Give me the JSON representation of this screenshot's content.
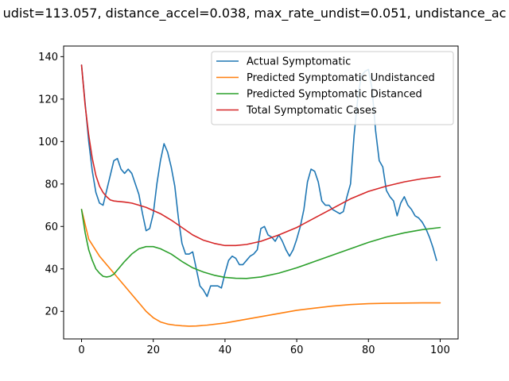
{
  "chart_data": {
    "type": "line",
    "title": "udist=113.057, distance_accel=0.038, max_rate_undist=0.051, undistance_ac",
    "xlabel": "",
    "ylabel": "",
    "xlim": [
      -5,
      105
    ],
    "ylim": [
      7,
      145
    ],
    "xticks": [
      0,
      20,
      40,
      60,
      80,
      100
    ],
    "yticks": [
      20,
      40,
      60,
      80,
      100,
      120,
      140
    ],
    "grid": false,
    "legend_position": "top-right",
    "series": [
      {
        "name": "Actual Symptomatic",
        "color": "#1f77b4",
        "points": [
          [
            0,
            136
          ],
          [
            1,
            118
          ],
          [
            2,
            100
          ],
          [
            3,
            86
          ],
          [
            4,
            76
          ],
          [
            5,
            71
          ],
          [
            6,
            70
          ],
          [
            7,
            77
          ],
          [
            8,
            84
          ],
          [
            9,
            91
          ],
          [
            10,
            92
          ],
          [
            11,
            87
          ],
          [
            12,
            85
          ],
          [
            13,
            87
          ],
          [
            14,
            85
          ],
          [
            15,
            80
          ],
          [
            16,
            75
          ],
          [
            17,
            66
          ],
          [
            18,
            58
          ],
          [
            19,
            59
          ],
          [
            20,
            66
          ],
          [
            21,
            80
          ],
          [
            22,
            91
          ],
          [
            23,
            99
          ],
          [
            24,
            95
          ],
          [
            25,
            88
          ],
          [
            26,
            79
          ],
          [
            27,
            64
          ],
          [
            28,
            52
          ],
          [
            29,
            47
          ],
          [
            30,
            47
          ],
          [
            31,
            48
          ],
          [
            32,
            40
          ],
          [
            33,
            32
          ],
          [
            34,
            30
          ],
          [
            35,
            27
          ],
          [
            36,
            32
          ],
          [
            37,
            32
          ],
          [
            38,
            32
          ],
          [
            39,
            31
          ],
          [
            40,
            38
          ],
          [
            41,
            44
          ],
          [
            42,
            46
          ],
          [
            43,
            45
          ],
          [
            44,
            42
          ],
          [
            45,
            42
          ],
          [
            46,
            44
          ],
          [
            47,
            46
          ],
          [
            48,
            47
          ],
          [
            49,
            49
          ],
          [
            50,
            59
          ],
          [
            51,
            60
          ],
          [
            52,
            56
          ],
          [
            53,
            55
          ],
          [
            54,
            53
          ],
          [
            55,
            56
          ],
          [
            56,
            53
          ],
          [
            57,
            49
          ],
          [
            58,
            46
          ],
          [
            59,
            49
          ],
          [
            60,
            54
          ],
          [
            61,
            60
          ],
          [
            62,
            68
          ],
          [
            63,
            81
          ],
          [
            64,
            87
          ],
          [
            65,
            86
          ],
          [
            66,
            81
          ],
          [
            67,
            72
          ],
          [
            68,
            70
          ],
          [
            69,
            70
          ],
          [
            70,
            68
          ],
          [
            71,
            67
          ],
          [
            72,
            66
          ],
          [
            73,
            67
          ],
          [
            74,
            74
          ],
          [
            75,
            80
          ],
          [
            76,
            103
          ],
          [
            77,
            120
          ],
          [
            78,
            131
          ],
          [
            79,
            133
          ],
          [
            80,
            134
          ],
          [
            81,
            125
          ],
          [
            82,
            105
          ],
          [
            83,
            91
          ],
          [
            84,
            88
          ],
          [
            85,
            77
          ],
          [
            86,
            74
          ],
          [
            87,
            72
          ],
          [
            88,
            65
          ],
          [
            89,
            71
          ],
          [
            90,
            74
          ],
          [
            91,
            70
          ],
          [
            92,
            68
          ],
          [
            93,
            65
          ],
          [
            94,
            64
          ],
          [
            95,
            62
          ],
          [
            96,
            59
          ],
          [
            97,
            55
          ],
          [
            98,
            50
          ],
          [
            99,
            44
          ]
        ]
      },
      {
        "name": "Predicted Symptomatic Undistanced",
        "color": "#ff7f0e",
        "points": [
          [
            0,
            68
          ],
          [
            2,
            54
          ],
          [
            5,
            46
          ],
          [
            8,
            40
          ],
          [
            10,
            36
          ],
          [
            12,
            32
          ],
          [
            14,
            28
          ],
          [
            16,
            24
          ],
          [
            18,
            20
          ],
          [
            20,
            17
          ],
          [
            22,
            15
          ],
          [
            24,
            14
          ],
          [
            26,
            13.5
          ],
          [
            28,
            13.2
          ],
          [
            30,
            13
          ],
          [
            32,
            13.1
          ],
          [
            35,
            13.5
          ],
          [
            40,
            14.5
          ],
          [
            45,
            16
          ],
          [
            50,
            17.5
          ],
          [
            55,
            19
          ],
          [
            60,
            20.5
          ],
          [
            65,
            21.5
          ],
          [
            70,
            22.5
          ],
          [
            75,
            23.2
          ],
          [
            80,
            23.6
          ],
          [
            85,
            23.8
          ],
          [
            90,
            23.9
          ],
          [
            95,
            24
          ],
          [
            100,
            24
          ]
        ]
      },
      {
        "name": "Predicted Symptomatic Distanced",
        "color": "#2ca02c",
        "points": [
          [
            0,
            68
          ],
          [
            1,
            57
          ],
          [
            2,
            49
          ],
          [
            3,
            44
          ],
          [
            4,
            40
          ],
          [
            5,
            38
          ],
          [
            6,
            36.5
          ],
          [
            7,
            36.2
          ],
          [
            8,
            36.5
          ],
          [
            9,
            37.5
          ],
          [
            10,
            39.5
          ],
          [
            12,
            43.5
          ],
          [
            14,
            47
          ],
          [
            16,
            49.5
          ],
          [
            18,
            50.5
          ],
          [
            20,
            50.5
          ],
          [
            22,
            49.5
          ],
          [
            25,
            47
          ],
          [
            28,
            43.5
          ],
          [
            31,
            40.5
          ],
          [
            34,
            38.5
          ],
          [
            37,
            37
          ],
          [
            40,
            36
          ],
          [
            43,
            35.6
          ],
          [
            46,
            35.5
          ],
          [
            50,
            36.2
          ],
          [
            55,
            38
          ],
          [
            60,
            40.5
          ],
          [
            65,
            43.5
          ],
          [
            70,
            46.5
          ],
          [
            75,
            49.5
          ],
          [
            80,
            52.5
          ],
          [
            85,
            55
          ],
          [
            90,
            57
          ],
          [
            95,
            58.5
          ],
          [
            100,
            59.5
          ]
        ]
      },
      {
        "name": "Total Symptomatic Cases",
        "color": "#d62728",
        "points": [
          [
            0,
            136
          ],
          [
            1,
            117
          ],
          [
            2,
            103
          ],
          [
            3,
            92
          ],
          [
            4,
            84
          ],
          [
            5,
            79
          ],
          [
            6,
            76
          ],
          [
            7,
            74
          ],
          [
            8,
            72.5
          ],
          [
            9,
            72
          ],
          [
            10,
            71.8
          ],
          [
            12,
            71.5
          ],
          [
            14,
            71
          ],
          [
            16,
            70
          ],
          [
            18,
            69
          ],
          [
            20,
            67.5
          ],
          [
            22,
            66
          ],
          [
            25,
            63
          ],
          [
            28,
            59.5
          ],
          [
            31,
            56
          ],
          [
            34,
            53.5
          ],
          [
            37,
            52
          ],
          [
            40,
            51
          ],
          [
            43,
            51
          ],
          [
            46,
            51.5
          ],
          [
            50,
            53
          ],
          [
            55,
            56
          ],
          [
            60,
            59.5
          ],
          [
            65,
            64
          ],
          [
            70,
            68.5
          ],
          [
            75,
            73
          ],
          [
            80,
            76.5
          ],
          [
            85,
            79
          ],
          [
            90,
            81
          ],
          [
            95,
            82.5
          ],
          [
            100,
            83.5
          ]
        ]
      }
    ]
  }
}
